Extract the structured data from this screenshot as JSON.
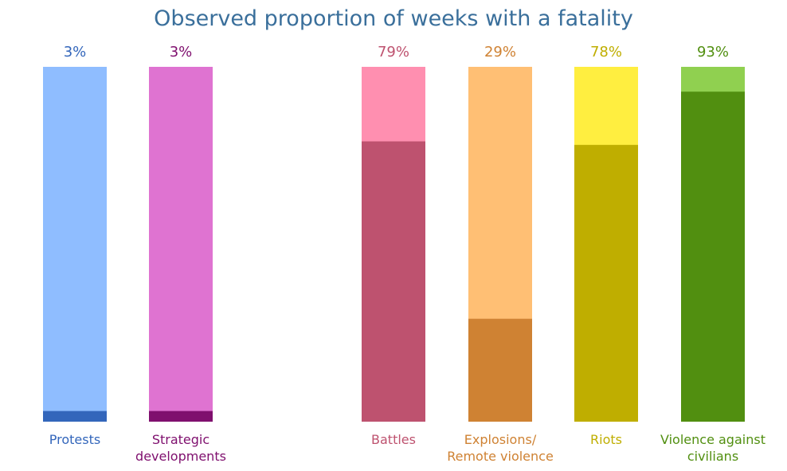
{
  "chart_data": {
    "type": "bar",
    "title": "Observed proportion of weeks with a fatality",
    "ylim": [
      0,
      100
    ],
    "grid": false,
    "legend": "none",
    "title_color": "#3a6f9b",
    "bars": [
      {
        "category": [
          "Protests"
        ],
        "value": 3,
        "label": "3%",
        "fill_color": "#3366bb",
        "background_color": "#8fbdff",
        "text_color": "#3366bb"
      },
      {
        "category": [
          "Strategic",
          "developments"
        ],
        "value": 3,
        "label": "3%",
        "fill_color": "#7f0f6e",
        "background_color": "#df73d1",
        "text_color": "#7f0f6e"
      },
      {
        "category": [
          "Battles"
        ],
        "value": 79,
        "label": "79%",
        "fill_color": "#be526f",
        "background_color": "#ff8fb0",
        "text_color": "#be526f"
      },
      {
        "category": [
          "Explosions/",
          "Remote violence"
        ],
        "value": 29,
        "label": "29%",
        "fill_color": "#cf8233",
        "background_color": "#ffbf74",
        "text_color": "#cf8233"
      },
      {
        "category": [
          "Riots"
        ],
        "value": 78,
        "label": "78%",
        "fill_color": "#bfae00",
        "background_color": "#ffee40",
        "text_color": "#bfae00"
      },
      {
        "category": [
          "Violence against",
          "civilians"
        ],
        "value": 93,
        "label": "93%",
        "fill_color": "#518f10",
        "background_color": "#90d050",
        "text_color": "#518f10"
      }
    ]
  }
}
